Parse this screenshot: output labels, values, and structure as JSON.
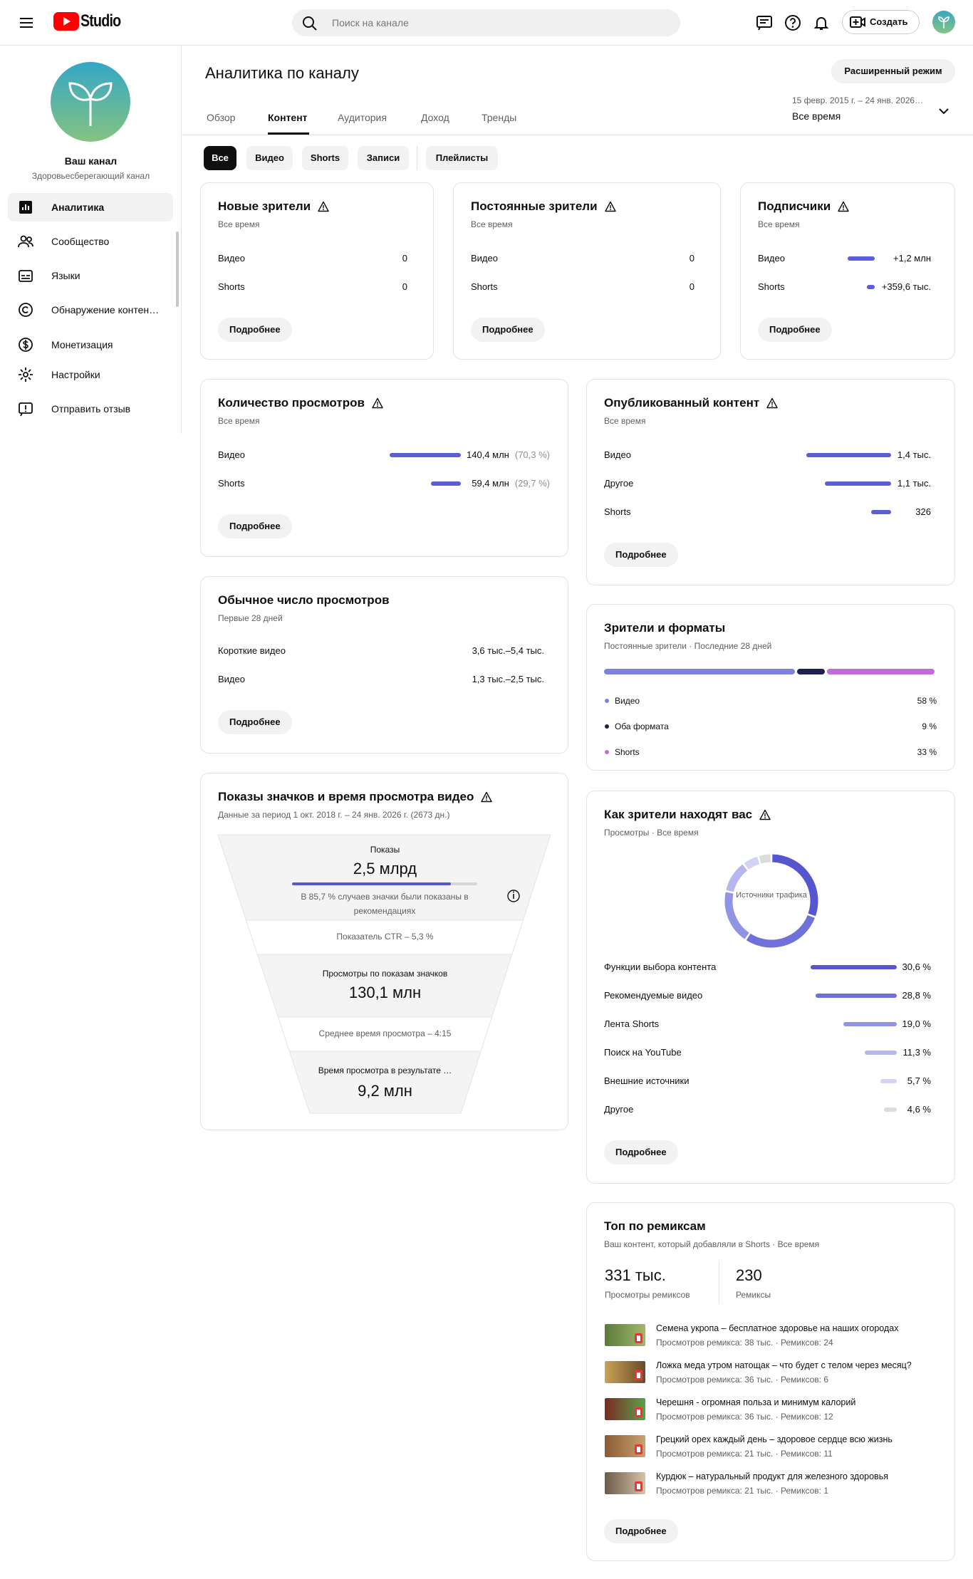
{
  "header": {
    "logo": "Studio",
    "search_placeholder": "Поиск на канале",
    "create": "Создать"
  },
  "sidebar": {
    "channel_name": "Ваш канал",
    "channel_subtitle": "Здоровьесберегающий канал",
    "nav": [
      "Аналитика",
      "Сообщество",
      "Языки",
      "Обнаружение контен…",
      "Монетизация",
      "Настройки",
      "Отправить отзыв"
    ]
  },
  "page": {
    "title": "Аналитика по каналу",
    "advanced": "Расширенный режим",
    "tabs": [
      "Обзор",
      "Контент",
      "Аудитория",
      "Доход",
      "Тренды"
    ],
    "date_range": "15 февр. 2015 г. – 24 янв. 2026…",
    "period": "Все время",
    "chips": [
      "Все",
      "Видео",
      "Shorts",
      "Записи",
      "Плейлисты"
    ]
  },
  "cards": {
    "new_viewers": {
      "title": "Новые зрители",
      "warning": true,
      "subtitle": "Все время",
      "rows": [
        {
          "label": "Видео",
          "value_label": "0"
        },
        {
          "label": "Shorts",
          "value_label": "0"
        }
      ],
      "button": "Подробнее"
    },
    "returning_viewers": {
      "title": "Постоянные зрители",
      "warning": true,
      "subtitle": "Все время",
      "rows": [
        {
          "label": "Видео",
          "value_label": "0"
        },
        {
          "label": "Shorts",
          "value_label": "0"
        }
      ],
      "button": "Подробнее"
    },
    "subscribers": {
      "title": "Подписчики",
      "warning": true,
      "subtitle": "Все время",
      "color": "#5b5ed6",
      "rows": [
        {
          "label": "Видео",
          "value": 1200000,
          "value_label": "+1,2 млн"
        },
        {
          "label": "Shorts",
          "value": 359600,
          "value_label": "+359,6 тыс."
        }
      ],
      "button": "Подробнее"
    },
    "views": {
      "title": "Количество просмотров",
      "warning": true,
      "subtitle": "Все время",
      "color": "#5b5ed6",
      "rows": [
        {
          "label": "Видео",
          "value": 140400000,
          "value_label": "140,4 млн",
          "share_label": "(70,3 %)"
        },
        {
          "label": "Shorts",
          "value": 59400000,
          "value_label": "59,4 млн",
          "share_label": "(29,7 %)"
        }
      ],
      "button": "Подробнее"
    },
    "published": {
      "title": "Опубликованный контент",
      "warning": true,
      "subtitle": "Все время",
      "color": "#5b5ed6",
      "rows": [
        {
          "label": "Видео",
          "value": 1400,
          "value_label": "1,4 тыс."
        },
        {
          "label": "Другое",
          "value": 1100,
          "value_label": "1,1 тыс."
        },
        {
          "label": "Shorts",
          "value": 326,
          "value_label": "326"
        }
      ],
      "button": "Подробнее"
    },
    "typical_views": {
      "title": "Обычное число просмотров",
      "subtitle": "Первые 28 дней",
      "rows": [
        {
          "label": "Короткие видео",
          "value_label": "3,6 тыс.–5,4 тыс."
        },
        {
          "label": "Видео",
          "value_label": "1,3 тыс.–2,5 тыс."
        }
      ],
      "button": "Подробнее"
    },
    "formats": {
      "title": "Зрители и форматы",
      "subtitle": "Постоянные зрители · Последние 28 дней",
      "segments": [
        {
          "label": "Видео",
          "value": 58,
          "value_label": "58 %",
          "color": "#7d82e2"
        },
        {
          "label": "Оба формата",
          "value": 9,
          "value_label": "9 %",
          "color": "#1f2050"
        },
        {
          "label": "Shorts",
          "value": 33,
          "value_label": "33 %",
          "color": "#c46bdb"
        }
      ]
    },
    "traffic": {
      "title": "Как зрители находят вас",
      "warning": true,
      "subtitle": "Просмотры · Все время",
      "center_label": "Источники трафика",
      "rows": [
        {
          "label": "Функции выбора контента",
          "value": 30.6,
          "value_label": "30,6 %",
          "color": "#5657d0"
        },
        {
          "label": "Рекомендуемые видео",
          "value": 28.8,
          "value_label": "28,8 %",
          "color": "#6e71d9"
        },
        {
          "label": "Лента Shorts",
          "value": 19.0,
          "value_label": "19,0 %",
          "color": "#9194e3"
        },
        {
          "label": "Поиск на YouTube",
          "value": 11.3,
          "value_label": "11,3 %",
          "color": "#b5b7ee"
        },
        {
          "label": "Внешние источники",
          "value": 5.7,
          "value_label": "5,7 %",
          "color": "#d2d3f5"
        },
        {
          "label": "Другое",
          "value": 4.6,
          "value_label": "4,6 %",
          "color": "#dcdcdc"
        }
      ],
      "button": "Подробнее"
    },
    "impressions": {
      "title": "Показы значков и время просмотра видео",
      "warning": true,
      "subtitle": "Данные за период 1 окт. 2018 г. – 24 янв. 2026 г. (2673 дн.)",
      "impressions_label": "Показы",
      "impressions_value": "2,5 млрд",
      "recommended_share": 85.7,
      "recommended_note": "В 85,7 % случаев значки были показаны в рекомендациях",
      "ctr": "Показатель CTR – 5,3 %",
      "views_label": "Просмотры по показам значков",
      "views_value": "130,1 млн",
      "avg_duration": "Среднее время просмотра – 4:15",
      "watch_label": "Время просмотра в результате …",
      "watch_value": "9,2 млн"
    },
    "remix": {
      "title": "Топ по ремиксам",
      "subtitle": "Ваш контент, который добавляли в Shorts · Все время",
      "stats": [
        {
          "value": "331 тыс.",
          "label": "Просмотры ремиксов"
        },
        {
          "value": "230",
          "label": "Ремиксы"
        }
      ],
      "items": [
        {
          "title": "Семена укропа – бесплатное здоровье на наших огородах",
          "meta": "Просмотров ремикса: 38 тыс. · Ремиксов: 24"
        },
        {
          "title": "Ложка меда утром натощак – что будет с телом через месяц?",
          "meta": "Просмотров ремикса: 36 тыс. · Ремиксов: 6"
        },
        {
          "title": "Черешня - огромная польза и минимум калорий",
          "meta": "Просмотров ремикса: 36 тыс. · Ремиксов: 12"
        },
        {
          "title": "Грецкий орех каждый день – здоровое сердце всю жизнь",
          "meta": "Просмотров ремикса: 21 тыс. · Ремиксов: 11"
        },
        {
          "title": "Курдюк – натуральный продукт для железного здоровья",
          "meta": "Просмотров ремикса: 21 тыс. · Ремиксов: 1"
        }
      ],
      "button": "Подробнее"
    }
  }
}
